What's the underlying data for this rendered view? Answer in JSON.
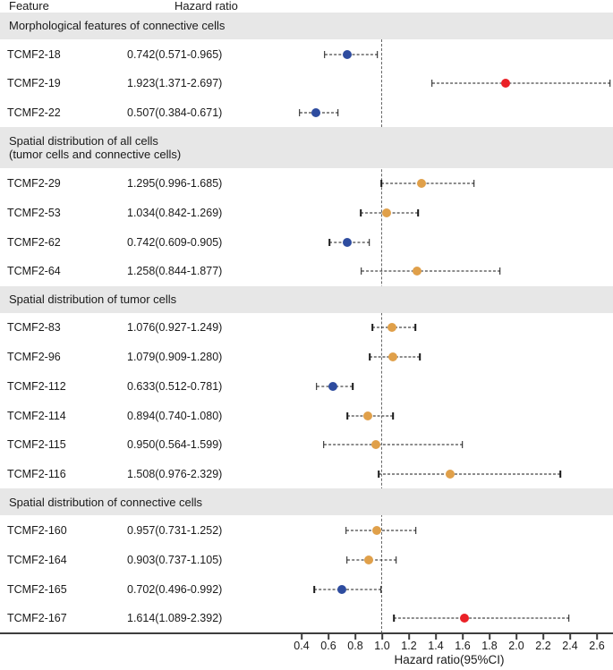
{
  "header": {
    "feature_col": "Feature",
    "hr_col": "Hazard ratio"
  },
  "colors": {
    "blue": "#2E4C9F",
    "red": "#EA2127",
    "orange": "#E0A04A",
    "band_bg": "#E7E7E7",
    "text": "#1A1A1A",
    "axis": "#3D3D3D",
    "reference_line": "#666666"
  },
  "chart_data": {
    "type": "forest",
    "xlabel": "Hazard ratio(95%CI)",
    "xticks": [
      0.4,
      0.6,
      0.8,
      1.0,
      1.2,
      1.4,
      1.6,
      1.8,
      2.0,
      2.2,
      2.4,
      2.6
    ],
    "x_tick_labels": [
      "0.4",
      "0.6",
      "0.8",
      "1.0",
      "1.2",
      "1.4",
      "1.6",
      "1.8",
      "2.0",
      "2.2",
      "2.4",
      "2.6"
    ],
    "xlim": [
      0.31,
      2.72
    ],
    "reference_line": 1.0,
    "legend_position": "none",
    "grid": false,
    "groups": [
      {
        "label_lines": [
          "Morphological features of connective cells"
        ],
        "rows": [
          {
            "feature": "TCMF2-18",
            "label": "0.742(0.571-0.965)",
            "hr": 0.742,
            "lo": 0.571,
            "hi": 0.965,
            "color": "blue"
          },
          {
            "feature": "TCMF2-19",
            "label": "1.923(1.371-2.697)",
            "hr": 1.923,
            "lo": 1.371,
            "hi": 2.697,
            "color": "red"
          },
          {
            "feature": "TCMF2-22",
            "label": "0.507(0.384-0.671)",
            "hr": 0.507,
            "lo": 0.384,
            "hi": 0.671,
            "color": "blue"
          }
        ]
      },
      {
        "label_lines": [
          "Spatial distribution of all cells",
          "(tumor cells and connective cells)"
        ],
        "rows": [
          {
            "feature": "TCMF2-29",
            "label": "1.295(0.996-1.685)",
            "hr": 1.295,
            "lo": 0.996,
            "hi": 1.685,
            "color": "orange"
          },
          {
            "feature": "TCMF2-53",
            "label": "1.034(0.842-1.269)",
            "hr": 1.034,
            "lo": 0.842,
            "hi": 1.269,
            "color": "orange"
          },
          {
            "feature": "TCMF2-62",
            "label": "0.742(0.609-0.905)",
            "hr": 0.742,
            "lo": 0.609,
            "hi": 0.905,
            "color": "blue"
          },
          {
            "feature": "TCMF2-64",
            "label": "1.258(0.844-1.877)",
            "hr": 1.258,
            "lo": 0.844,
            "hi": 1.877,
            "color": "orange"
          }
        ]
      },
      {
        "label_lines": [
          "Spatial distribution of tumor cells"
        ],
        "rows": [
          {
            "feature": "TCMF2-83",
            "label": "1.076(0.927-1.249)",
            "hr": 1.076,
            "lo": 0.927,
            "hi": 1.249,
            "color": "orange"
          },
          {
            "feature": "TCMF2-96",
            "label": "1.079(0.909-1.280)",
            "hr": 1.079,
            "lo": 0.909,
            "hi": 1.28,
            "color": "orange"
          },
          {
            "feature": "TCMF2-112",
            "label": "0.633(0.512-0.781)",
            "hr": 0.633,
            "lo": 0.512,
            "hi": 0.781,
            "color": "blue"
          },
          {
            "feature": "TCMF2-114",
            "label": "0.894(0.740-1.080)",
            "hr": 0.894,
            "lo": 0.74,
            "hi": 1.08,
            "color": "orange"
          },
          {
            "feature": "TCMF2-115",
            "label": "0.950(0.564-1.599)",
            "hr": 0.95,
            "lo": 0.564,
            "hi": 1.599,
            "color": "orange"
          },
          {
            "feature": "TCMF2-116",
            "label": "1.508(0.976-2.329)",
            "hr": 1.508,
            "lo": 0.976,
            "hi": 2.329,
            "color": "orange"
          }
        ]
      },
      {
        "label_lines": [
          "Spatial distribution of connective cells"
        ],
        "rows": [
          {
            "feature": "TCMF2-160",
            "label": "0.957(0.731-1.252)",
            "hr": 0.957,
            "lo": 0.731,
            "hi": 1.252,
            "color": "orange"
          },
          {
            "feature": "TCMF2-164",
            "label": "0.903(0.737-1.105)",
            "hr": 0.903,
            "lo": 0.737,
            "hi": 1.105,
            "color": "orange"
          },
          {
            "feature": "TCMF2-165",
            "label": "0.702(0.496-0.992)",
            "hr": 0.702,
            "lo": 0.496,
            "hi": 0.992,
            "color": "blue"
          },
          {
            "feature": "TCMF2-167",
            "label": "1.614(1.089-2.392)",
            "hr": 1.614,
            "lo": 1.089,
            "hi": 2.392,
            "color": "red"
          }
        ]
      }
    ]
  }
}
